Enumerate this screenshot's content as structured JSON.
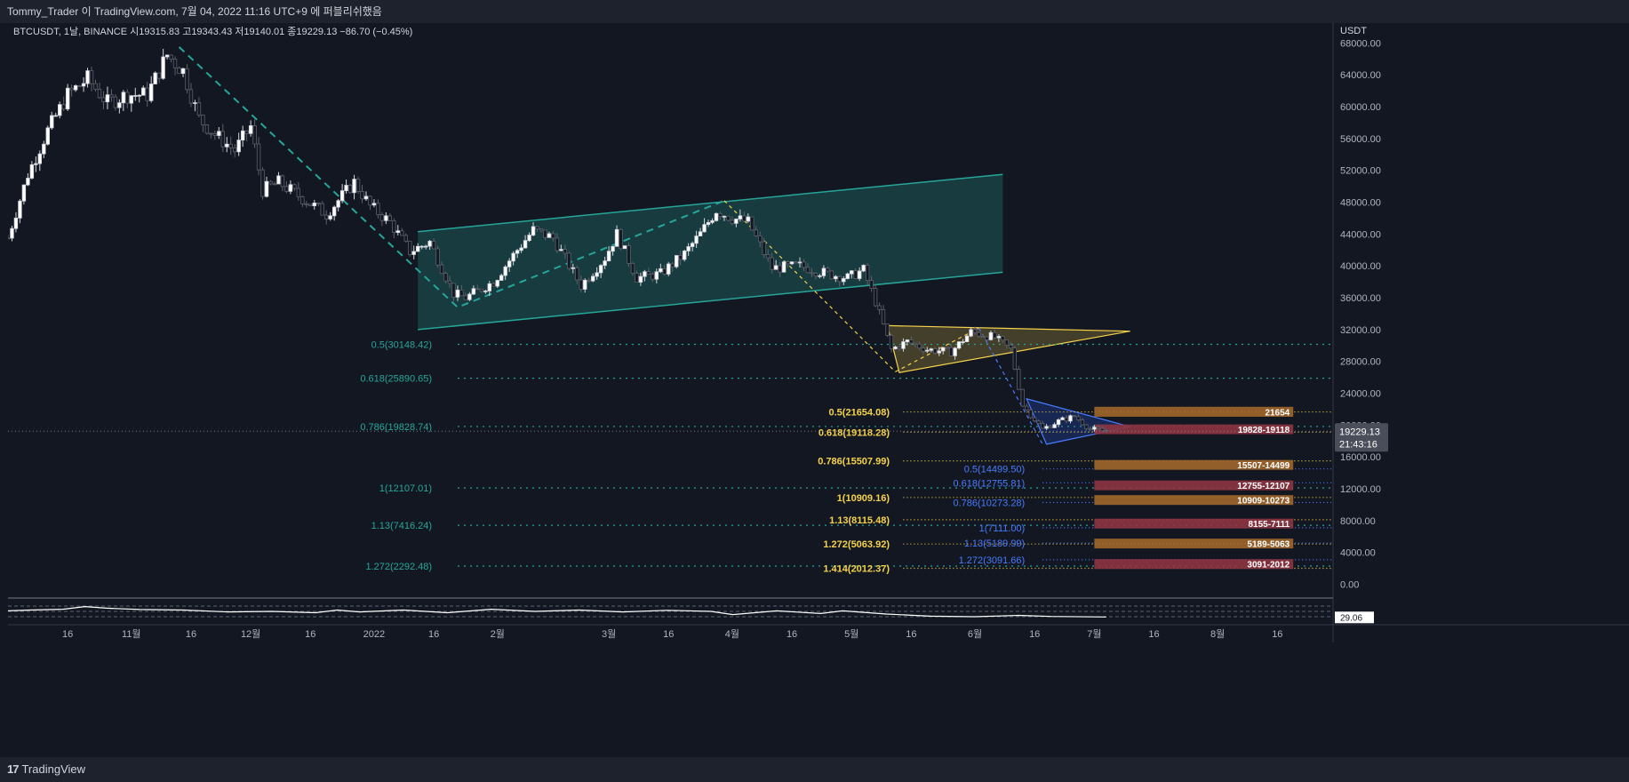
{
  "header": {
    "publish_line": "Tommy_Trader 이 TradingView.com, 7월 04, 2022 11:16 UTC+9 에 퍼블리쉬했음",
    "symbol_line": "BTCUSDT, 1날, BINANCE  시19315.83  고19343.43  저19140.01  종19229.13  −86.70 (−0.45%)"
  },
  "footer": {
    "brand": "TradingView",
    "logo_mark": "17"
  },
  "colors": {
    "background": "#131722",
    "up": "#d1d4dc",
    "down": "#5d606b",
    "teal": "#26a69a",
    "yellow": "#f5d34a",
    "blue": "#2962ff",
    "orange": "#a0662a",
    "red": "#8e3440"
  },
  "chart_data": {
    "type": "candlestick",
    "symbol": "BTCUSDT",
    "interval": "1날",
    "exchange": "BINANCE",
    "ohlc": {
      "open": 19315.83,
      "high": 19343.43,
      "low": 19140.01,
      "close": 19229.13,
      "change": -86.7,
      "change_pct": -0.45
    },
    "y_axis": {
      "unit": "USDT",
      "ticks": [
        68000,
        64000,
        60000,
        56000,
        52000,
        48000,
        44000,
        40000,
        36000,
        32000,
        28000,
        24000,
        20000,
        16000,
        12000,
        8000,
        4000,
        0
      ],
      "tick_labels": [
        "68000.00",
        "64000.00",
        "60000.00",
        "56000.00",
        "52000.00",
        "48000.00",
        "44000.00",
        "40000.00",
        "36000.00",
        "32000.00",
        "28000.00",
        "24000.00",
        "20000.00",
        "16000.00",
        "12000.00",
        "8000.00",
        "4000.00",
        "0.00"
      ],
      "range": [
        -1500,
        70500
      ]
    },
    "x_axis": {
      "range": [
        "2021-10-01",
        "2022-08-30"
      ],
      "ticks": [
        {
          "date": "2021-10-16",
          "label": "16"
        },
        {
          "date": "2021-11-01",
          "label": "11월"
        },
        {
          "date": "2021-11-16",
          "label": "16"
        },
        {
          "date": "2021-12-01",
          "label": "12월"
        },
        {
          "date": "2021-12-16",
          "label": "16"
        },
        {
          "date": "2022-01-01",
          "label": "2022"
        },
        {
          "date": "2022-01-16",
          "label": "16"
        },
        {
          "date": "2022-02-01",
          "label": "2월"
        },
        {
          "date": "2022-03-01",
          "label": "3월"
        },
        {
          "date": "2022-03-16",
          "label": "16"
        },
        {
          "date": "2022-04-01",
          "label": "4월"
        },
        {
          "date": "2022-04-16",
          "label": "16"
        },
        {
          "date": "2022-05-01",
          "label": "5월"
        },
        {
          "date": "2022-05-16",
          "label": "16"
        },
        {
          "date": "2022-06-01",
          "label": "6월"
        },
        {
          "date": "2022-06-16",
          "label": "16"
        },
        {
          "date": "2022-07-01",
          "label": "7월"
        },
        {
          "date": "2022-07-16",
          "label": "16"
        },
        {
          "date": "2022-08-01",
          "label": "8월"
        },
        {
          "date": "2022-08-16",
          "label": "16"
        }
      ]
    },
    "price_path": [
      [
        "2021-10-01",
        43500
      ],
      [
        "2021-10-06",
        51500
      ],
      [
        "2021-10-11",
        57000
      ],
      [
        "2021-10-16",
        61500
      ],
      [
        "2021-10-21",
        63500
      ],
      [
        "2021-10-26",
        60500
      ],
      [
        "2021-10-31",
        61500
      ],
      [
        "2021-11-05",
        61500
      ],
      [
        "2021-11-10",
        66500
      ],
      [
        "2021-11-14",
        64500
      ],
      [
        "2021-11-18",
        58500
      ],
      [
        "2021-11-22",
        56500
      ],
      [
        "2021-11-27",
        54500
      ],
      [
        "2021-12-01",
        57500
      ],
      [
        "2021-12-04",
        49500
      ],
      [
        "2021-12-08",
        50500
      ],
      [
        "2021-12-14",
        48500
      ],
      [
        "2021-12-20",
        46500
      ],
      [
        "2021-12-27",
        50500
      ],
      [
        "2021-12-31",
        47500
      ],
      [
        "2022-01-05",
        45500
      ],
      [
        "2022-01-10",
        41800
      ],
      [
        "2022-01-15",
        43000
      ],
      [
        "2022-01-21",
        36500
      ],
      [
        "2022-01-24",
        36000
      ],
      [
        "2022-01-31",
        38000
      ],
      [
        "2022-02-06",
        42000
      ],
      [
        "2022-02-10",
        44500
      ],
      [
        "2022-02-15",
        43500
      ],
      [
        "2022-02-22",
        37500
      ],
      [
        "2022-02-28",
        41000
      ],
      [
        "2022-03-03",
        44000
      ],
      [
        "2022-03-08",
        38500
      ],
      [
        "2022-03-14",
        39000
      ],
      [
        "2022-03-20",
        41500
      ],
      [
        "2022-03-24",
        44000
      ],
      [
        "2022-03-28",
        47000
      ],
      [
        "2022-04-01",
        46000
      ],
      [
        "2022-04-05",
        45500
      ],
      [
        "2022-04-11",
        39700
      ],
      [
        "2022-04-18",
        40000
      ],
      [
        "2022-04-25",
        39000
      ],
      [
        "2022-04-30",
        38500
      ],
      [
        "2022-05-04",
        39500
      ],
      [
        "2022-05-07",
        35500
      ],
      [
        "2022-05-11",
        29500
      ],
      [
        "2022-05-15",
        30500
      ],
      [
        "2022-05-20",
        29500
      ],
      [
        "2022-05-26",
        29200
      ],
      [
        "2022-05-31",
        31700
      ],
      [
        "2022-06-06",
        31000
      ],
      [
        "2022-06-10",
        29500
      ],
      [
        "2022-06-13",
        22500
      ],
      [
        "2022-06-18",
        19500
      ],
      [
        "2022-06-22",
        20500
      ],
      [
        "2022-06-26",
        21100
      ],
      [
        "2022-06-30",
        19500
      ],
      [
        "2022-07-04",
        19229
      ]
    ],
    "channel": {
      "p1": [
        "2022-01-12",
        44300
      ],
      "p2": [
        "2022-06-08",
        51500
      ],
      "offset": -12300
    },
    "triangles": [
      {
        "name": "yellow",
        "points": [
          [
            "2022-05-10",
            32500
          ],
          [
            "2022-05-13",
            26600
          ],
          [
            "2022-07-10",
            31800
          ]
        ]
      },
      {
        "name": "blue",
        "points": [
          [
            "2022-06-14",
            23300
          ],
          [
            "2022-06-19",
            17600
          ],
          [
            "2022-07-10",
            19800
          ]
        ]
      }
    ],
    "trend_lines": [
      {
        "style": "teal-dash",
        "points": [
          [
            "2021-11-13",
            67500
          ],
          [
            "2022-01-22",
            34800
          ],
          [
            "2022-03-30",
            48200
          ]
        ]
      },
      {
        "style": "yellow-dash",
        "points": [
          [
            "2022-03-30",
            48200
          ],
          [
            "2022-05-12",
            26700
          ]
        ]
      },
      {
        "style": "yellow-dash",
        "points": [
          [
            "2022-05-12",
            26700
          ],
          [
            "2022-06-02",
            32200
          ]
        ]
      },
      {
        "style": "blue-dash",
        "points": [
          [
            "2022-06-02",
            32200
          ],
          [
            "2022-06-18",
            17600
          ]
        ]
      }
    ],
    "fib_levels": [
      {
        "set": "teal",
        "label": "0.5(30148.42)",
        "value": 30148.42
      },
      {
        "set": "teal",
        "label": "0.618(25890.65)",
        "value": 25890.65
      },
      {
        "set": "teal",
        "label": "0.786(19828.74)",
        "value": 19828.74
      },
      {
        "set": "teal",
        "label": "1(12107.01)",
        "value": 12107.01
      },
      {
        "set": "teal",
        "label": "1.13(7416.24)",
        "value": 7416.24
      },
      {
        "set": "teal",
        "label": "1.272(2292.48)",
        "value": 2292.48
      },
      {
        "set": "yellow",
        "label": "0.5(21654.08)",
        "value": 21654.08
      },
      {
        "set": "yellow",
        "label": "0.618(19118.28)",
        "value": 19118.28
      },
      {
        "set": "yellow",
        "label": "0.786(15507.99)",
        "value": 15507.99
      },
      {
        "set": "yellow",
        "label": "1(10909.16)",
        "value": 10909.16
      },
      {
        "set": "yellow",
        "label": "1.13(8115.48)",
        "value": 8115.48
      },
      {
        "set": "yellow",
        "label": "1.272(5063.92)",
        "value": 5063.92
      },
      {
        "set": "yellow",
        "label": "1.414(2012.37)",
        "value": 2012.37
      },
      {
        "set": "blue",
        "label": "0.5(14499.50)",
        "value": 14499.5
      },
      {
        "set": "blue",
        "label": "0.618(12755.81)",
        "value": 12755.81
      },
      {
        "set": "blue",
        "label": "0.786(10273.28)",
        "value": 10273.28
      },
      {
        "set": "blue",
        "label": "1(7111.00)",
        "value": 7111.0
      },
      {
        "set": "blue",
        "label": "1.13(5189.99)",
        "value": 5189.99
      },
      {
        "set": "blue",
        "label": "1.272(3091.66)",
        "value": 3091.66
      }
    ],
    "zones": [
      {
        "label": "21654",
        "high": 22300,
        "low": 21050,
        "color": "orange"
      },
      {
        "label": "19828-19118",
        "high": 19828,
        "low": 19118,
        "color": "red"
      },
      {
        "label": "15507-14499",
        "high": 15507,
        "low": 14499,
        "color": "orange"
      },
      {
        "label": "12755-12107",
        "high": 12755,
        "low": 12107,
        "color": "red"
      },
      {
        "label": "10909-10273",
        "high": 10909,
        "low": 10273,
        "color": "orange"
      },
      {
        "label": "8155-7111",
        "high": 8155,
        "low": 7111,
        "color": "red"
      },
      {
        "label": "5189-5063",
        "high": 5189,
        "low": 5063,
        "color": "orange"
      },
      {
        "label": "3091-2012",
        "high": 3091,
        "low": 2012,
        "color": "red"
      }
    ],
    "last_price": {
      "value": 19229.13,
      "label": "19229.13",
      "countdown": "21:43:16"
    },
    "oscillator": {
      "value_label": "29.06",
      "value": 29.06,
      "range": [
        0,
        100
      ],
      "bands": [
        30,
        50,
        70
      ],
      "path": [
        [
          0,
          52
        ],
        [
          0.02,
          55
        ],
        [
          0.05,
          58
        ],
        [
          0.07,
          68
        ],
        [
          0.09,
          62
        ],
        [
          0.12,
          57
        ],
        [
          0.16,
          55
        ],
        [
          0.2,
          48
        ],
        [
          0.24,
          50
        ],
        [
          0.28,
          45
        ],
        [
          0.3,
          55
        ],
        [
          0.32,
          48
        ],
        [
          0.36,
          55
        ],
        [
          0.4,
          45
        ],
        [
          0.44,
          58
        ],
        [
          0.48,
          50
        ],
        [
          0.52,
          55
        ],
        [
          0.56,
          48
        ],
        [
          0.6,
          54
        ],
        [
          0.64,
          50
        ],
        [
          0.66,
          38
        ],
        [
          0.7,
          52
        ],
        [
          0.74,
          42
        ],
        [
          0.76,
          52
        ],
        [
          0.8,
          40
        ],
        [
          0.84,
          32
        ],
        [
          0.88,
          30
        ],
        [
          0.92,
          35
        ],
        [
          0.95,
          31
        ],
        [
          1.0,
          29
        ]
      ]
    }
  }
}
